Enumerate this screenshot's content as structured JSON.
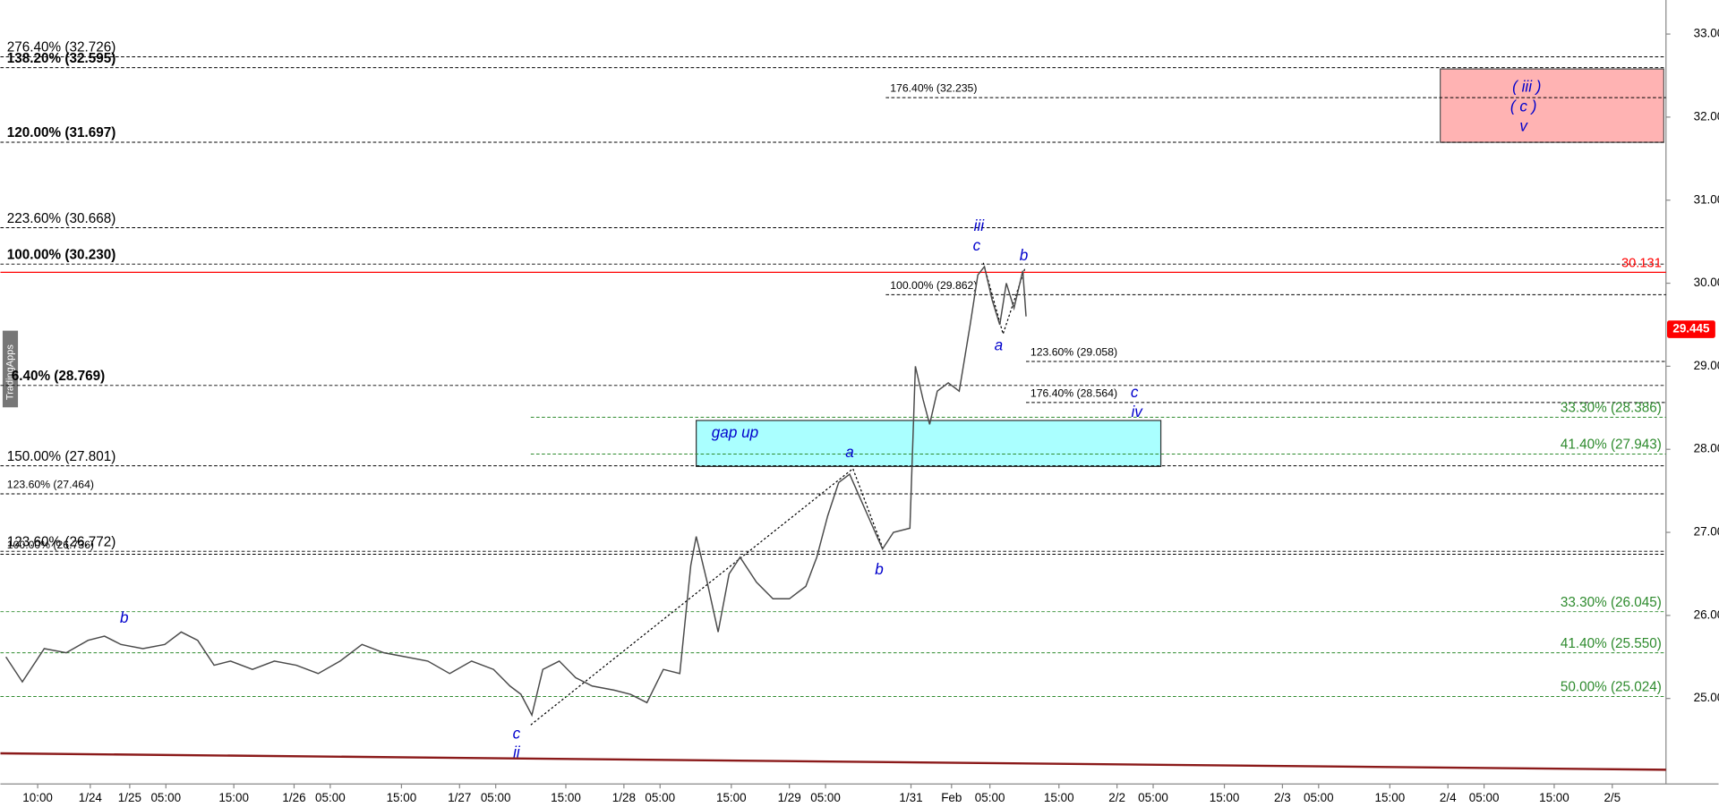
{
  "chart_data": {
    "type": "line",
    "color": "#4a4a4a",
    "x": [
      5,
      20,
      40,
      60,
      80,
      95,
      110,
      130,
      150,
      165,
      180,
      195,
      210,
      230,
      250,
      270,
      290,
      310,
      330,
      350,
      370,
      390,
      410,
      430,
      450,
      465,
      475,
      485,
      495,
      510,
      525,
      540,
      560,
      575,
      590,
      605,
      620,
      630,
      635,
      645,
      655,
      665,
      675,
      690,
      705,
      720,
      735,
      745,
      755,
      765,
      775,
      785,
      795,
      805,
      815,
      830,
      835,
      842,
      848,
      855,
      865,
      875,
      885,
      892,
      898,
      905,
      912,
      918,
      925,
      933,
      936
    ],
    "values": [
      25.5,
      25.2,
      25.6,
      25.55,
      25.7,
      25.75,
      25.65,
      25.6,
      25.65,
      25.8,
      25.7,
      25.4,
      25.45,
      25.35,
      25.45,
      25.4,
      25.3,
      25.45,
      25.65,
      25.55,
      25.5,
      25.45,
      25.3,
      25.45,
      25.35,
      25.15,
      25.05,
      24.8,
      25.35,
      25.45,
      25.25,
      25.15,
      25.1,
      25.05,
      24.95,
      25.35,
      25.3,
      26.6,
      26.95,
      26.4,
      25.8,
      26.5,
      26.7,
      26.4,
      26.2,
      26.2,
      26.35,
      26.7,
      27.2,
      27.6,
      27.7,
      27.4,
      27.1,
      26.8,
      27.0,
      27.05,
      29.0,
      28.6,
      28.3,
      28.7,
      28.8,
      28.7,
      29.5,
      30.1,
      30.2,
      29.8,
      29.5,
      30.0,
      29.7,
      30.15,
      29.6
    ],
    "xlim": [
      0,
      1520
    ],
    "ylim": [
      23.97,
      33.41
    ],
    "yticks": [
      {
        "value": 25,
        "label": "25.000"
      },
      {
        "value": 26,
        "label": "26.000"
      },
      {
        "value": 27,
        "label": "27.000"
      },
      {
        "value": 28,
        "label": "28.000"
      },
      {
        "value": 29,
        "label": "29.000"
      },
      {
        "value": 30,
        "label": "30.000"
      },
      {
        "value": 31,
        "label": "31.000"
      },
      {
        "value": 32,
        "label": "32.000"
      },
      {
        "value": 33,
        "label": "33.000"
      }
    ],
    "xticks": [
      {
        "value": 34,
        "label": "10:00"
      },
      {
        "value": 82,
        "label": "1/24"
      },
      {
        "value": 118,
        "label": "1/25"
      },
      {
        "value": 151,
        "label": "05:00"
      },
      {
        "value": 213,
        "label": "15:00"
      },
      {
        "value": 268,
        "label": "1/26"
      },
      {
        "value": 301,
        "label": "05:00"
      },
      {
        "value": 366,
        "label": "15:00"
      },
      {
        "value": 419,
        "label": "1/27"
      },
      {
        "value": 452,
        "label": "05:00"
      },
      {
        "value": 516,
        "label": "15:00"
      },
      {
        "value": 569,
        "label": "1/28"
      },
      {
        "value": 602,
        "label": "05:00"
      },
      {
        "value": 667,
        "label": "15:00"
      },
      {
        "value": 720,
        "label": "1/29"
      },
      {
        "value": 753,
        "label": "05:00"
      },
      {
        "value": 831,
        "label": "1/31"
      },
      {
        "value": 868,
        "label": "Feb"
      },
      {
        "value": 903,
        "label": "05:00"
      },
      {
        "value": 966,
        "label": "15:00"
      },
      {
        "value": 1019,
        "label": "2/2"
      },
      {
        "value": 1052,
        "label": "05:00"
      },
      {
        "value": 1117,
        "label": "15:00"
      },
      {
        "value": 1170,
        "label": "2/3"
      },
      {
        "value": 1203,
        "label": "05:00"
      },
      {
        "value": 1268,
        "label": "15:00"
      },
      {
        "value": 1321,
        "label": "2/4"
      },
      {
        "value": 1354,
        "label": "05:00"
      },
      {
        "value": 1418,
        "label": "15:00"
      },
      {
        "value": 1471,
        "label": "2/5"
      }
    ],
    "fib_levels": [
      {
        "label": "276.40% (32.726)",
        "value": 32.726,
        "color": "#000000",
        "bold": false,
        "small": false
      },
      {
        "label": "138.20% (32.595)",
        "value": 32.595,
        "color": "#000000",
        "bold": true,
        "small": false
      },
      {
        "label": "176.40% (32.235)",
        "value": 32.235,
        "color": "#000000",
        "bold": false,
        "small": true
      },
      {
        "label": "120.00% (31.697)",
        "value": 31.697,
        "color": "#000000",
        "bold": true,
        "small": false
      },
      {
        "label": "223.60% (30.668)",
        "value": 30.668,
        "color": "#000000",
        "bold": false,
        "small": false
      },
      {
        "label": "100.00% (30.230)",
        "value": 30.23,
        "color": "#000000",
        "bold": true,
        "small": false
      },
      {
        "label": "100.00% (29.862)",
        "value": 29.862,
        "color": "#000000",
        "bold": false,
        "small": true
      },
      {
        "label": "123.60% (29.058)",
        "value": 29.058,
        "color": "#000000",
        "bold": false,
        "small": true
      },
      {
        "label": "6.40% (28.769)",
        "value": 28.769,
        "color": "#000000",
        "bold": true,
        "small": false
      },
      {
        "label": "176.40% (28.564)",
        "value": 28.564,
        "color": "#000000",
        "bold": false,
        "small": true
      },
      {
        "label": "33.30% (28.386)",
        "value": 28.386,
        "color": "#2e8b2e",
        "bold": false,
        "small": false
      },
      {
        "label": "41.40% (27.943)",
        "value": 27.943,
        "color": "#2e8b2e",
        "bold": false,
        "small": false
      },
      {
        "label": "150.00% (27.801)",
        "value": 27.801,
        "color": "#000000",
        "bold": false,
        "small": false
      },
      {
        "label": "123.60% (27.464)",
        "value": 27.464,
        "color": "#000000",
        "bold": false,
        "small": true
      },
      {
        "label": "123.60% (26.772)",
        "value": 26.772,
        "color": "#000000",
        "bold": false,
        "small": false
      },
      {
        "label": "100.00% (26.736)",
        "value": 26.736,
        "color": "#000000",
        "bold": false,
        "small": true
      },
      {
        "label": "33.30% (26.045)",
        "value": 26.045,
        "color": "#2e8b2e",
        "bold": false,
        "small": false
      },
      {
        "label": "41.40% (25.550)",
        "value": 25.55,
        "color": "#2e8b2e",
        "bold": false,
        "small": false
      },
      {
        "label": "50.00% (25.024)",
        "value": 25.024,
        "color": "#2e8b2e",
        "bold": false,
        "small": false
      }
    ],
    "reference_line": {
      "value": 30.131,
      "label": "30.131",
      "color": "#ff0000"
    },
    "last_price": {
      "value": 29.445,
      "label": "29.445",
      "color": "#ff0000"
    },
    "wave_labels": [
      "b",
      "c",
      "ii",
      "a",
      "b",
      "iii",
      "c",
      "a",
      "b",
      "c",
      "iv",
      "( iii )",
      "( c )",
      "v"
    ],
    "zone_label": "gap up",
    "watermark": "TradingApps"
  }
}
